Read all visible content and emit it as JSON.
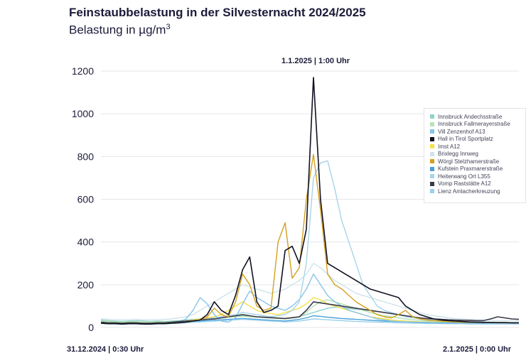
{
  "header": {
    "title": "Feinstaubbelastung in der Silvesternacht 2024/2025",
    "subtitle_base": "Belastung in µg/m",
    "subtitle_exp": "3"
  },
  "annotations": {
    "peak": "1.1.2025 | 1:00 Uhr",
    "x_start": "31.12.2024 | 0:30 Uhr",
    "x_end": "2.1.2025 | 0:00 Uhr"
  },
  "chart_data": {
    "type": "line",
    "title": "Feinstaubbelastung in der Silvesternacht 2024/2025",
    "subtitle": "Belastung in µg/m3",
    "ylim": [
      0,
      1200
    ],
    "yticks": [
      0,
      200,
      400,
      600,
      800,
      1000,
      1200
    ],
    "grid": true,
    "legend_position": "right",
    "x_range": [
      "31.12.2024 | 0:30 Uhr",
      "2.1.2025 | 0:00 Uhr"
    ],
    "peak_annotation": "1.1.2025 | 1:00 Uhr",
    "series": [
      {
        "name": "Innsbruck Andechsstraße",
        "color": "#8fd3c8",
        "values": [
          35,
          32,
          30,
          28,
          30,
          32,
          30,
          28,
          30,
          28,
          30,
          32,
          35,
          38,
          40,
          42,
          45,
          48,
          50,
          52,
          55,
          52,
          50,
          48,
          46,
          44,
          42,
          45,
          50,
          60,
          70,
          80,
          90,
          95,
          92,
          88,
          85,
          82,
          80,
          75,
          70,
          65,
          60,
          55,
          50,
          45,
          40,
          38,
          35,
          32,
          30,
          28,
          26,
          25,
          25,
          24,
          23,
          22,
          22,
          22
        ]
      },
      {
        "name": "Innsbruck Fallmerayerstraße",
        "color": "#b7e3b4",
        "values": [
          30,
          28,
          26,
          25,
          26,
          28,
          26,
          25,
          26,
          25,
          26,
          28,
          30,
          32,
          35,
          38,
          40,
          45,
          48,
          50,
          52,
          50,
          48,
          46,
          44,
          42,
          40,
          44,
          48,
          70,
          100,
          120,
          130,
          120,
          110,
          100,
          90,
          80,
          70,
          62,
          55,
          50,
          45,
          40,
          36,
          33,
          30,
          28,
          26,
          25,
          24,
          23,
          22,
          22,
          21,
          21,
          20,
          20,
          20,
          20
        ]
      },
      {
        "name": "Vill Zenzenhof A13",
        "color": "#88c4e8",
        "values": [
          20,
          18,
          18,
          17,
          18,
          18,
          17,
          17,
          18,
          18,
          20,
          25,
          40,
          80,
          140,
          110,
          60,
          30,
          25,
          45,
          110,
          170,
          140,
          120,
          100,
          90,
          80,
          100,
          130,
          180,
          250,
          200,
          150,
          120,
          100,
          80,
          70,
          60,
          50,
          40,
          35,
          30,
          28,
          26,
          24,
          22,
          20,
          20,
          19,
          18,
          18,
          18,
          17,
          17,
          17,
          17,
          17,
          17,
          17,
          17
        ]
      },
      {
        "name": "Hall in Tirol Sportplatz",
        "color": "#111122",
        "values": [
          20,
          18,
          18,
          16,
          18,
          18,
          16,
          16,
          18,
          18,
          20,
          22,
          25,
          30,
          35,
          60,
          120,
          80,
          60,
          150,
          270,
          330,
          120,
          70,
          80,
          100,
          360,
          380,
          300,
          460,
          1170,
          600,
          300,
          280,
          260,
          240,
          220,
          200,
          180,
          170,
          160,
          150,
          140,
          100,
          80,
          60,
          50,
          40,
          35,
          32,
          30,
          28,
          26,
          25,
          24,
          24,
          23,
          23,
          22,
          22
        ]
      },
      {
        "name": "Imst A12",
        "color": "#f5e04a",
        "values": [
          25,
          22,
          22,
          20,
          22,
          22,
          20,
          20,
          22,
          22,
          25,
          28,
          30,
          35,
          40,
          45,
          50,
          60,
          80,
          100,
          120,
          100,
          80,
          70,
          65,
          60,
          70,
          80,
          90,
          110,
          140,
          130,
          110,
          100,
          90,
          80,
          70,
          60,
          50,
          45,
          40,
          35,
          32,
          30,
          28,
          26,
          24,
          23,
          22,
          22,
          21,
          21,
          20,
          20,
          20,
          20,
          20,
          20,
          20,
          20
        ]
      },
      {
        "name": "Brixlegg Innweg",
        "color": "#cfe4ea",
        "values": [
          40,
          38,
          36,
          35,
          36,
          38,
          36,
          35,
          36,
          38,
          40,
          45,
          50,
          60,
          80,
          100,
          120,
          140,
          160,
          180,
          200,
          190,
          180,
          170,
          160,
          170,
          180,
          200,
          220,
          250,
          300,
          280,
          250,
          220,
          200,
          180,
          160,
          150,
          140,
          130,
          120,
          110,
          100,
          90,
          80,
          70,
          60,
          55,
          50,
          45,
          42,
          40,
          38,
          36,
          35,
          34,
          33,
          32,
          32,
          32
        ]
      },
      {
        "name": "Wörgl Stelzhamerstraße",
        "color": "#d4a020",
        "values": [
          20,
          18,
          18,
          16,
          18,
          18,
          16,
          16,
          18,
          18,
          20,
          22,
          25,
          30,
          35,
          50,
          90,
          60,
          50,
          120,
          250,
          200,
          100,
          80,
          90,
          400,
          490,
          230,
          280,
          600,
          810,
          550,
          250,
          200,
          180,
          150,
          120,
          100,
          80,
          60,
          50,
          45,
          60,
          80,
          50,
          40,
          35,
          32,
          30,
          28,
          26,
          25,
          24,
          24,
          23,
          23,
          22,
          22,
          22,
          22
        ]
      },
      {
        "name": "Kufstein Praxmarerstraße",
        "color": "#4aa0d8",
        "values": [
          22,
          20,
          20,
          18,
          20,
          20,
          18,
          18,
          20,
          20,
          22,
          24,
          26,
          28,
          30,
          32,
          34,
          36,
          38,
          40,
          42,
          40,
          38,
          36,
          34,
          32,
          30,
          34,
          38,
          45,
          55,
          52,
          48,
          45,
          42,
          40,
          38,
          36,
          34,
          32,
          30,
          28,
          27,
          26,
          25,
          24,
          23,
          22,
          22,
          21,
          21,
          20,
          20,
          20,
          20,
          19,
          19,
          19,
          19,
          19
        ]
      },
      {
        "name": "Heiterwang Ort L355",
        "color": "#a8d4e8",
        "values": [
          20,
          18,
          18,
          16,
          18,
          18,
          16,
          16,
          18,
          18,
          20,
          22,
          25,
          30,
          35,
          40,
          45,
          50,
          55,
          60,
          70,
          65,
          60,
          55,
          50,
          55,
          60,
          80,
          120,
          300,
          700,
          770,
          780,
          650,
          500,
          400,
          300,
          200,
          150,
          100,
          80,
          70,
          60,
          50,
          45,
          40,
          38,
          35,
          32,
          30,
          28,
          26,
          25,
          24,
          24,
          23,
          23,
          22,
          22,
          22
        ]
      },
      {
        "name": "Vomp Raststätte A12",
        "color": "#3a3a48",
        "values": [
          25,
          22,
          22,
          20,
          22,
          22,
          20,
          20,
          22,
          22,
          25,
          28,
          30,
          32,
          35,
          38,
          40,
          45,
          50,
          55,
          60,
          55,
          50,
          48,
          46,
          44,
          42,
          46,
          50,
          80,
          120,
          115,
          110,
          105,
          100,
          95,
          90,
          85,
          80,
          75,
          70,
          65,
          60,
          55,
          50,
          45,
          42,
          40,
          38,
          36,
          35,
          34,
          33,
          32,
          32,
          40,
          50,
          45,
          40,
          38
        ]
      },
      {
        "name": "Lienz Amlacherkreuzung",
        "color": "#9bd0ec",
        "values": [
          18,
          16,
          16,
          15,
          16,
          16,
          15,
          15,
          16,
          16,
          18,
          20,
          22,
          24,
          26,
          28,
          30,
          32,
          34,
          36,
          38,
          36,
          34,
          32,
          30,
          28,
          26,
          28,
          30,
          35,
          40,
          38,
          36,
          34,
          32,
          30,
          28,
          27,
          26,
          25,
          24,
          23,
          22,
          21,
          20,
          20,
          19,
          19,
          18,
          18,
          18,
          18,
          17,
          17,
          17,
          17,
          17,
          17,
          17,
          17
        ]
      }
    ]
  }
}
